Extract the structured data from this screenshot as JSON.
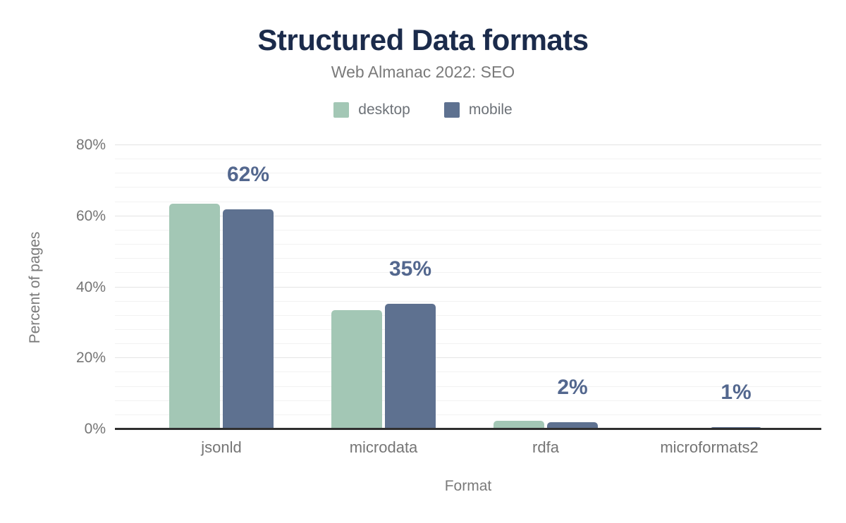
{
  "title": "Structured Data formats",
  "subtitle": "Web Almanac 2022: SEO",
  "legend": [
    {
      "label": "desktop",
      "color": "#a3c7b5"
    },
    {
      "label": "mobile",
      "color": "#5e7190"
    }
  ],
  "y_axis": {
    "title": "Percent of pages"
  },
  "x_axis": {
    "title": "Format"
  },
  "colors": {
    "title_text": "#1b2b4b",
    "muted_text": "#757575",
    "annotation_text": "#53678e",
    "desktop_bar": "#a3c7b5",
    "mobile_bar": "#5e7190",
    "axis_line": "#2f2f2f",
    "major_gridline": "#e4e4e4",
    "minor_gridline": "#f2f2f2"
  },
  "chart_data": {
    "type": "bar",
    "title": "Structured Data formats",
    "subtitle": "Web Almanac 2022: SEO",
    "xlabel": "Format",
    "ylabel": "Percent of pages",
    "categories": [
      "jsonld",
      "microdata",
      "rdfa",
      "microformats2"
    ],
    "series": [
      {
        "name": "desktop",
        "color": "#a3c7b5",
        "values": [
          63.6,
          33.5,
          2.3,
          0.1
        ]
      },
      {
        "name": "mobile",
        "color": "#5e7190",
        "values": [
          61.9,
          35.3,
          1.9,
          0.6
        ]
      }
    ],
    "annotations": {
      "series": "mobile",
      "labels": [
        "62%",
        "35%",
        "2%",
        "1%"
      ]
    },
    "ylim": [
      0,
      80
    ],
    "y_major_ticks": [
      0,
      20,
      40,
      60,
      80
    ],
    "y_tick_labels": [
      "0%",
      "20%",
      "40%",
      "60%",
      "80%"
    ],
    "y_minor_step": 4,
    "grid": true,
    "legend_position": "top"
  }
}
